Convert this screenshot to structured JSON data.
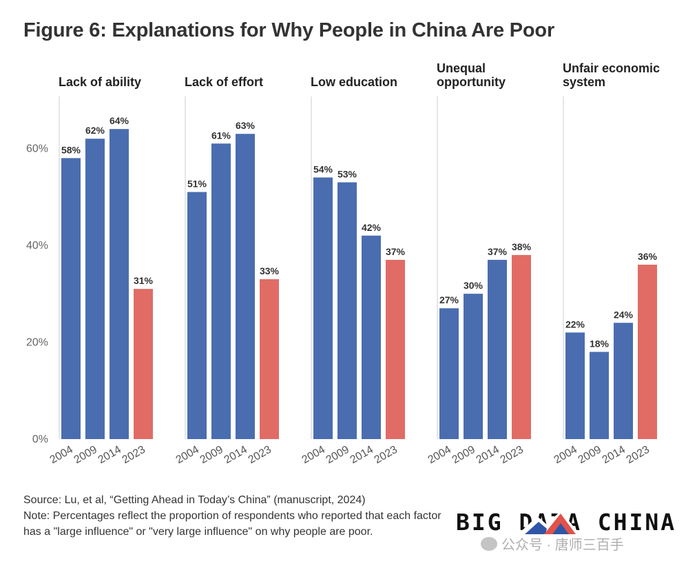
{
  "title": "Figure 6: Explanations for Why People in China Are Poor",
  "colors": {
    "bar_default": "#4a6db0",
    "bar_highlight": "#e06c65",
    "axis": "#cccccc"
  },
  "chart_data": {
    "type": "bar",
    "title": "Figure 6: Explanations for Why People in China Are Poor",
    "ylabel": "",
    "ylim": [
      0,
      70
    ],
    "yticks": [
      0,
      20,
      40,
      60
    ],
    "ytick_labels": [
      "0%",
      "20%",
      "40%",
      "60%"
    ],
    "categories": [
      "2004",
      "2009",
      "2014",
      "2023"
    ],
    "highlight_category": "2023",
    "panels": [
      {
        "title": [
          "Lack of ability"
        ],
        "values": [
          58,
          62,
          64,
          31
        ],
        "labels": [
          "58%",
          "62%",
          "64%",
          "31%"
        ]
      },
      {
        "title": [
          "Lack of effort"
        ],
        "values": [
          51,
          61,
          63,
          33
        ],
        "labels": [
          "51%",
          "61%",
          "63%",
          "33%"
        ]
      },
      {
        "title": [
          "Low education"
        ],
        "values": [
          54,
          53,
          42,
          37
        ],
        "labels": [
          "54%",
          "53%",
          "42%",
          "37%"
        ]
      },
      {
        "title": [
          "Unequal",
          "opportunity"
        ],
        "values": [
          27,
          30,
          37,
          38
        ],
        "labels": [
          "27%",
          "30%",
          "37%",
          "38%"
        ]
      },
      {
        "title": [
          "Unfair economic",
          "system"
        ],
        "values": [
          22,
          18,
          24,
          36
        ],
        "labels": [
          "22%",
          "18%",
          "24%",
          "36%"
        ]
      }
    ]
  },
  "footer": {
    "source": "Source: Lu, et al, “Getting Ahead in Today’s China” (manuscript, 2024)",
    "note": "Note: Percentages reflect the proportion of respondents who reported that each factor has a \"large influence\" or \"very large influence\" on why people are poor."
  },
  "brand": {
    "text": "BIG DATA CHINA"
  },
  "watermark": {
    "text": "公众号 · 唐师三百手"
  }
}
